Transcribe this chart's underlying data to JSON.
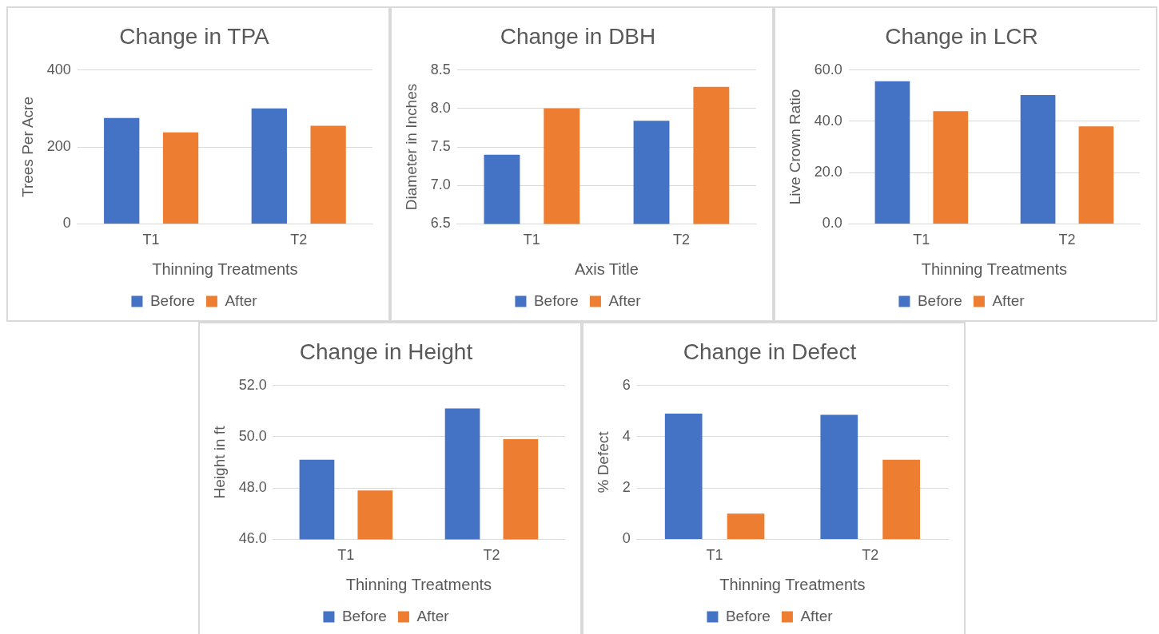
{
  "chart_data": [
    {
      "type": "bar",
      "title": "Change in TPA",
      "xlabel": "Thinning Treatments",
      "ylabel": "Trees Per Acre",
      "categories": [
        "T1",
        "T2"
      ],
      "series": [
        {
          "name": "Before",
          "color": "#4472c4",
          "values": [
            275,
            300
          ]
        },
        {
          "name": "After",
          "color": "#ed7d31",
          "values": [
            238,
            255
          ]
        }
      ],
      "ylim": [
        0,
        400
      ],
      "yticks": [
        0,
        200,
        400
      ],
      "grid": "y",
      "legend": "bottom"
    },
    {
      "type": "bar",
      "title": "Change in DBH",
      "xlabel": "Axis Title",
      "ylabel": "Diameter in Inches",
      "categories": [
        "T1",
        "T2"
      ],
      "series": [
        {
          "name": "Before",
          "color": "#4472c4",
          "values": [
            7.4,
            7.84
          ]
        },
        {
          "name": "After",
          "color": "#ed7d31",
          "values": [
            8.0,
            8.28
          ]
        }
      ],
      "ylim": [
        6.5,
        8.5
      ],
      "yticks": [
        6.5,
        {
          "value": 7,
          "label": "7.0"
        },
        7.5,
        {
          "value": 8,
          "label": "8.0"
        },
        8.5
      ],
      "grid": "y",
      "legend": "bottom"
    },
    {
      "type": "bar",
      "title": "Change in LCR",
      "xlabel": "Thinning Treatments",
      "ylabel": "Live Crown Ratio",
      "categories": [
        "T1",
        "T2"
      ],
      "series": [
        {
          "name": "Before",
          "color": "#4472c4",
          "values": [
            55.6,
            50.2
          ]
        },
        {
          "name": "After",
          "color": "#ed7d31",
          "values": [
            43.9,
            38.0
          ]
        }
      ],
      "ylim": [
        0,
        60
      ],
      "yticks": [
        {
          "value": 0,
          "label": "0.0"
        },
        {
          "value": 20,
          "label": "20.0"
        },
        {
          "value": 40,
          "label": "40.0"
        },
        {
          "value": 60,
          "label": "60.0"
        }
      ],
      "grid": "y",
      "legend": "bottom"
    },
    {
      "type": "bar",
      "title": "Change in Height",
      "xlabel": "Thinning Treatments",
      "ylabel": "Height in ft",
      "categories": [
        "T1",
        "T2"
      ],
      "series": [
        {
          "name": "Before",
          "color": "#4472c4",
          "values": [
            49.1,
            51.1
          ]
        },
        {
          "name": "After",
          "color": "#ed7d31",
          "values": [
            47.9,
            49.9
          ]
        }
      ],
      "ylim": [
        46,
        52
      ],
      "yticks": [
        {
          "value": 46,
          "label": "46.0"
        },
        {
          "value": 48,
          "label": "48.0"
        },
        {
          "value": 50,
          "label": "50.0"
        },
        {
          "value": 52,
          "label": "52.0"
        }
      ],
      "grid": "y",
      "legend": "bottom"
    },
    {
      "type": "bar",
      "title": "Change in Defect",
      "xlabel": "Thinning Treatments",
      "ylabel": "% Defect",
      "categories": [
        "T1",
        "T2"
      ],
      "series": [
        {
          "name": "Before",
          "color": "#4472c4",
          "values": [
            4.9,
            4.85
          ]
        },
        {
          "name": "After",
          "color": "#ed7d31",
          "values": [
            1.0,
            3.1
          ]
        }
      ],
      "ylim": [
        0,
        6
      ],
      "yticks": [
        0,
        2,
        4,
        6
      ],
      "grid": "y",
      "legend": "bottom"
    }
  ]
}
